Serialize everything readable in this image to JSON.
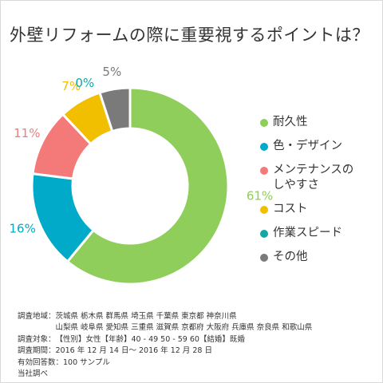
{
  "title": "外壁リフォームの際に重要視するポイントは？",
  "chart_data": {
    "type": "donut",
    "title": "外壁リフォームの際に重要視するポイントは？",
    "categories": [
      "耐久性",
      "色・デザイン",
      "メンテナンスの\nしやすさ",
      "コスト",
      "作業スピード",
      "その他"
    ],
    "values": [
      61,
      16,
      11,
      7,
      0,
      5
    ],
    "data_labels": [
      "61%",
      "16%",
      "11%",
      "7%",
      "0%",
      "5%"
    ],
    "colors": [
      "#8fce5a",
      "#00aac8",
      "#f47a7a",
      "#f2be00",
      "#14a5a5",
      "#7a7a7a"
    ],
    "legend_position": "right"
  },
  "notes": [
    {
      "key": "調査地域：",
      "value": "茨城県 栃木県 群馬県 埼玉県 千葉県 東京都 神奈川県\n山梨県 岐阜県 愛知県 三重県 滋賀県 京都府 大阪府 兵庫県 奈良県 和歌山県"
    },
    {
      "key": "調査対象：",
      "value": "【性別】女性【年齢】40 - 49 50 - 59 60【結婚】既婚"
    },
    {
      "key": "調査期間：",
      "value": "2016 年 12 月 14 日～ 2016 年 12 月 28 日"
    },
    {
      "key": "有効回答数：",
      "value": "100 サンプル"
    }
  ],
  "footer": "当社調べ"
}
